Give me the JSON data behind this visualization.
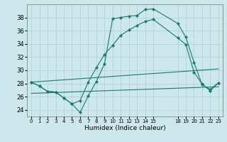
{
  "xlabel": "Humidex (Indice chaleur)",
  "bg_color": "#cce8ec",
  "grid_color": "#aacdd4",
  "line_color": "#1a7a6e",
  "xlim": [
    -0.5,
    23.5
  ],
  "ylim": [
    23.0,
    40.0
  ],
  "yticks": [
    24,
    26,
    28,
    30,
    32,
    34,
    36,
    38
  ],
  "xtick_positions": [
    0,
    1,
    2,
    3,
    4,
    5,
    6,
    7,
    8,
    9,
    10,
    11,
    12,
    13,
    14,
    15,
    18,
    19,
    20,
    21,
    22,
    23
  ],
  "xtick_labels": [
    "0",
    "1",
    "2",
    "3",
    "4",
    "5",
    "6",
    "7",
    "8",
    "9",
    "10",
    "11",
    "12",
    "13",
    "14",
    "15",
    "18",
    "19",
    "20",
    "21",
    "22",
    "23"
  ],
  "series": [
    {
      "x": [
        0,
        1,
        2,
        3,
        4,
        5,
        6,
        7,
        8,
        9,
        10,
        11,
        12,
        13,
        14,
        15,
        18,
        19,
        20,
        21,
        22,
        23
      ],
      "y": [
        28.2,
        27.6,
        26.8,
        26.7,
        25.8,
        24.9,
        23.6,
        26.1,
        28.3,
        31.0,
        37.8,
        38.0,
        38.2,
        38.3,
        39.2,
        39.3,
        37.1,
        35.0,
        31.2,
        27.8,
        27.1,
        28.1
      ],
      "marker": true
    },
    {
      "x": [
        0,
        1,
        2,
        3,
        4,
        5,
        6,
        7,
        8,
        9,
        10,
        11,
        12,
        13,
        14,
        15,
        18,
        19,
        20,
        21,
        22,
        23
      ],
      "y": [
        28.2,
        27.6,
        26.8,
        26.7,
        25.8,
        24.9,
        25.4,
        28.2,
        30.4,
        32.4,
        33.8,
        35.3,
        36.1,
        36.8,
        37.4,
        37.7,
        34.9,
        33.9,
        29.7,
        27.9,
        26.9,
        28.1
      ],
      "marker": true
    },
    {
      "x": [
        0,
        23
      ],
      "y": [
        28.2,
        30.2
      ],
      "marker": false
    },
    {
      "x": [
        0,
        23
      ],
      "y": [
        26.5,
        27.5
      ],
      "marker": false
    }
  ]
}
